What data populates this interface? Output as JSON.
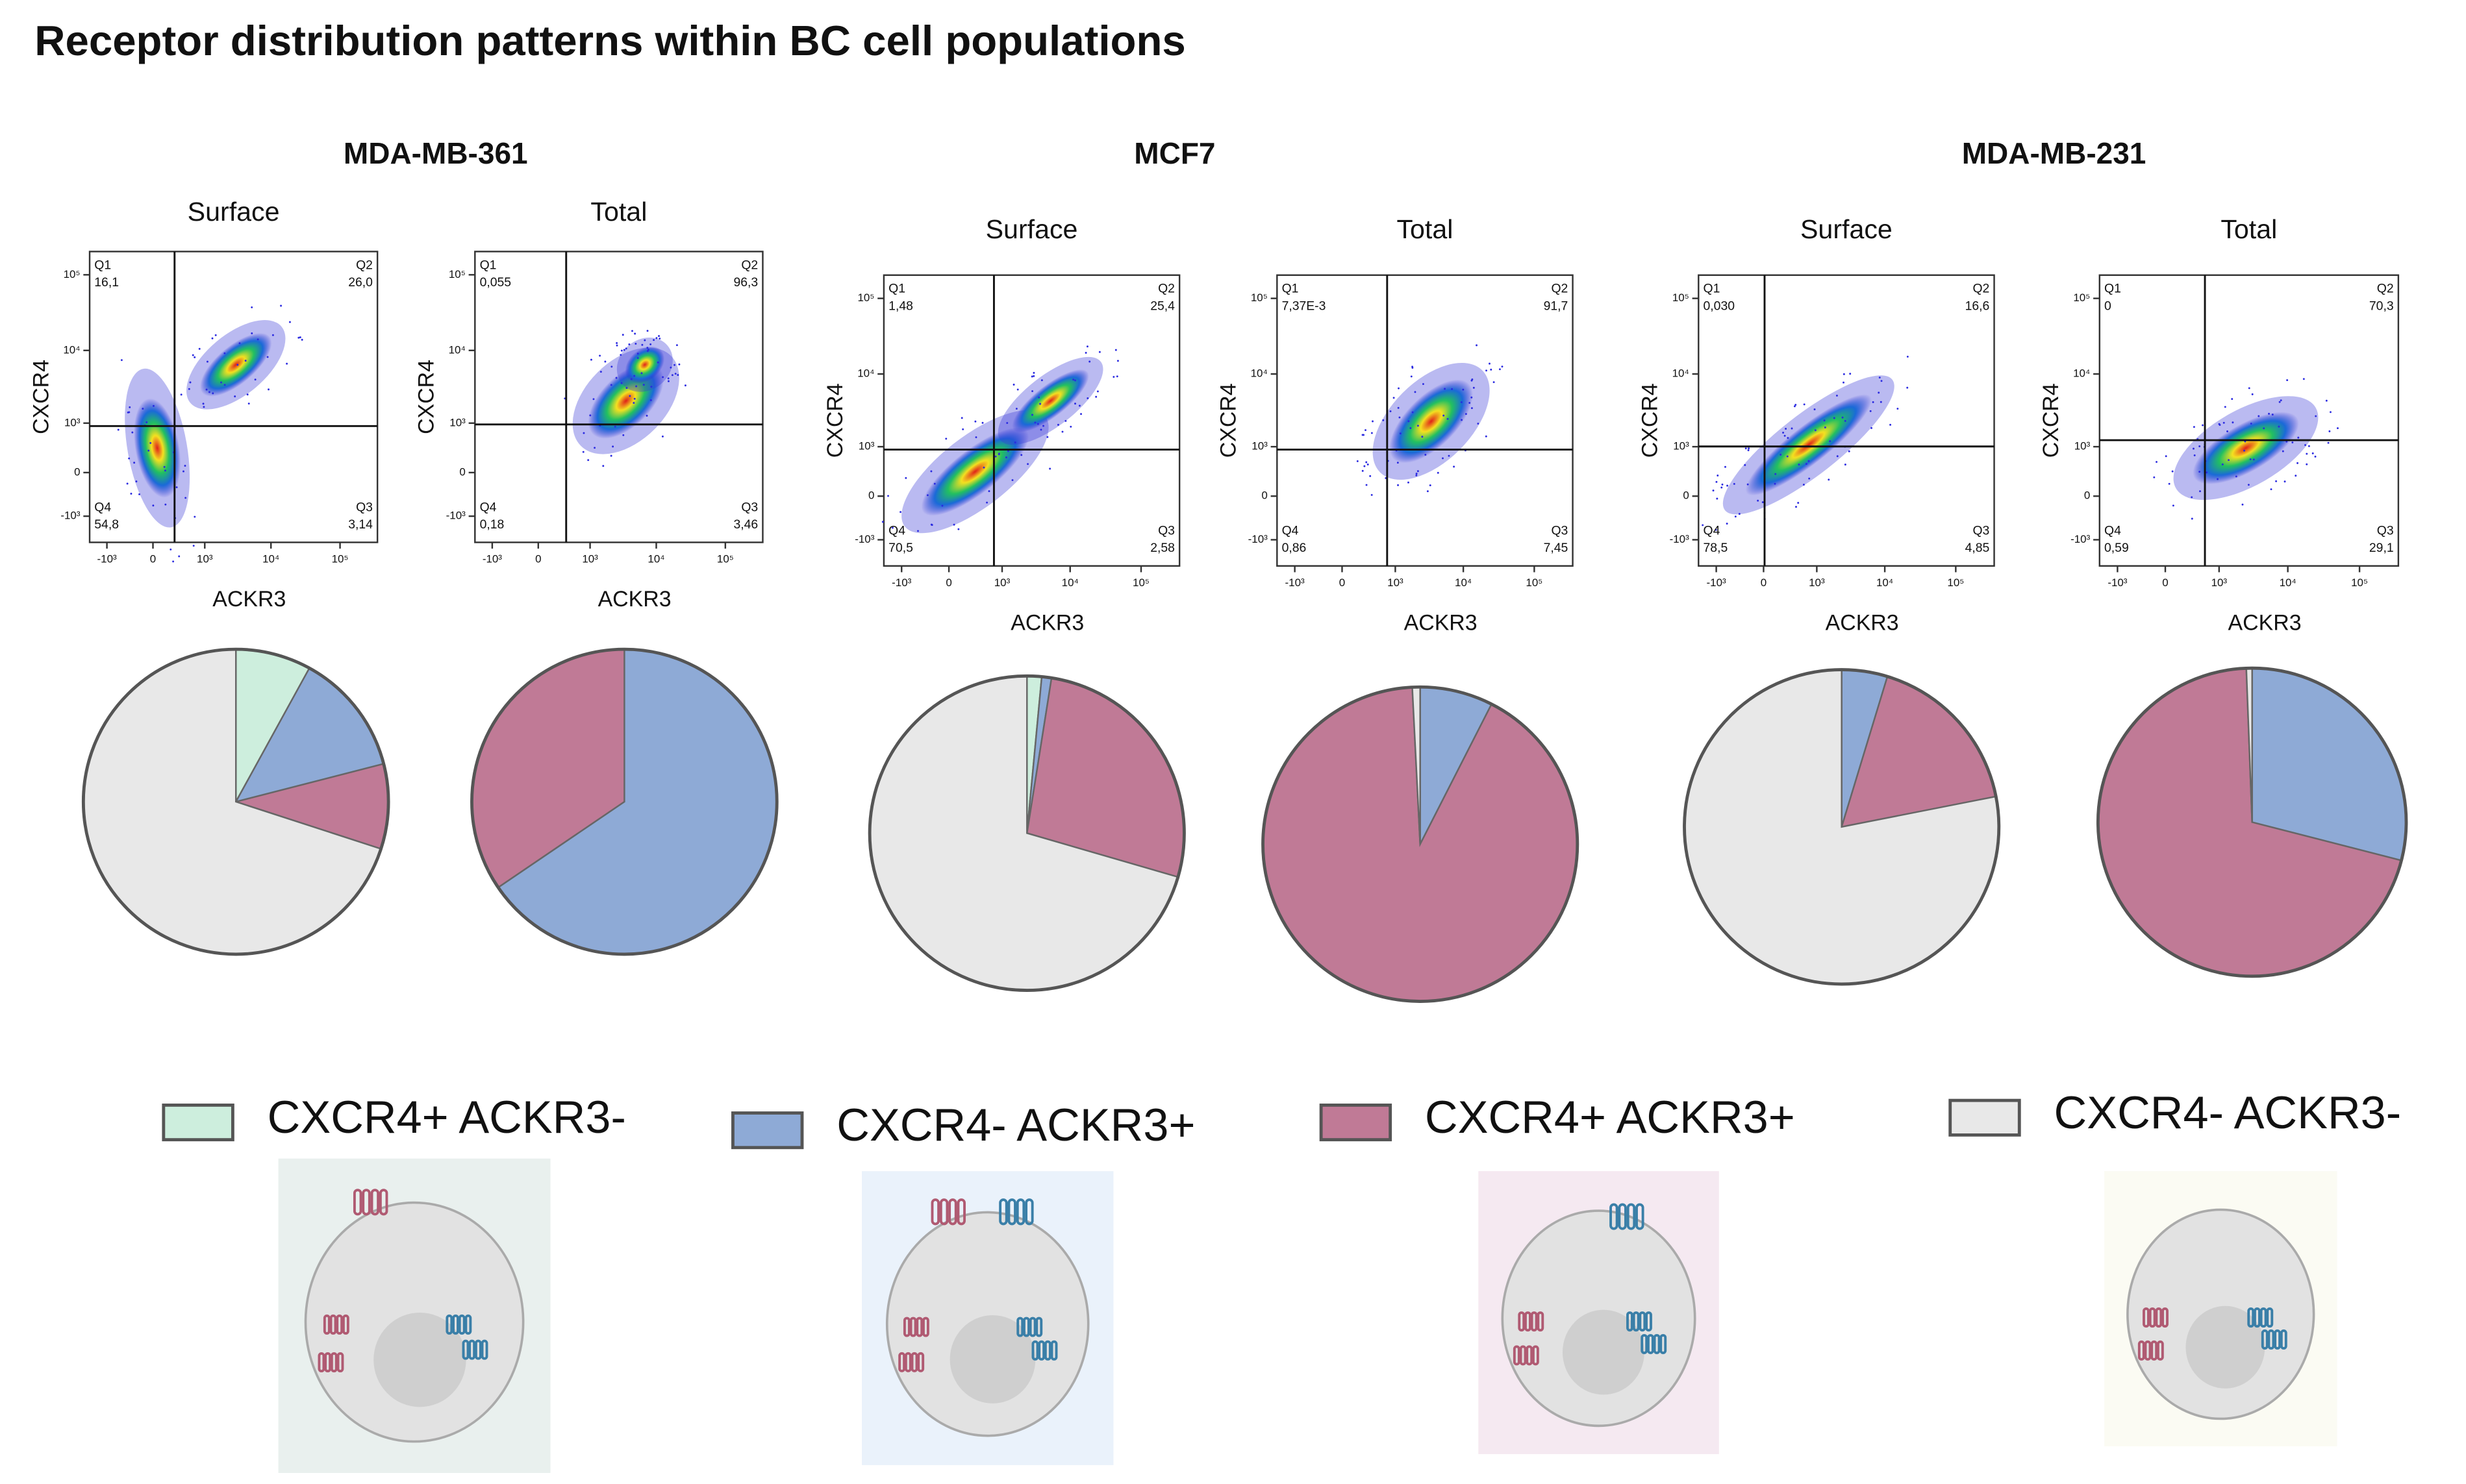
{
  "title": "Receptor distribution patterns within BC cell populations",
  "flow_axes": {
    "x_label": "ACKR3",
    "y_label": "CXCR4",
    "x_ticks": [
      "-10³",
      "0",
      "10³",
      "10⁴",
      "10⁵"
    ],
    "y_ticks": [
      "10⁵",
      "10⁴",
      "10³",
      "0",
      "-10³"
    ]
  },
  "cell_lines": [
    {
      "name": "MDA-MB-361",
      "panels": [
        {
          "label": "Surface",
          "quadrants": [
            {
              "name": "Q1",
              "value": "16,1"
            },
            {
              "name": "Q2",
              "value": "26,0"
            },
            {
              "name": "Q3",
              "value": "3,14"
            },
            {
              "name": "Q4",
              "value": "54,8"
            }
          ]
        },
        {
          "label": "Total",
          "quadrants": [
            {
              "name": "Q1",
              "value": "0,055"
            },
            {
              "name": "Q2",
              "value": "96,3"
            },
            {
              "name": "Q3",
              "value": "3,46"
            },
            {
              "name": "Q4",
              "value": "0,18"
            }
          ]
        }
      ]
    },
    {
      "name": "MCF7",
      "panels": [
        {
          "label": "Surface",
          "quadrants": [
            {
              "name": "Q1",
              "value": "1,48"
            },
            {
              "name": "Q2",
              "value": "25,4"
            },
            {
              "name": "Q3",
              "value": "2,58"
            },
            {
              "name": "Q4",
              "value": "70,5"
            }
          ]
        },
        {
          "label": "Total",
          "quadrants": [
            {
              "name": "Q1",
              "value": "7,37E-3"
            },
            {
              "name": "Q2",
              "value": "91,7"
            },
            {
              "name": "Q3",
              "value": "7,45"
            },
            {
              "name": "Q4",
              "value": "0,86"
            }
          ]
        }
      ]
    },
    {
      "name": "MDA-MB-231",
      "panels": [
        {
          "label": "Surface",
          "quadrants": [
            {
              "name": "Q1",
              "value": "0,030"
            },
            {
              "name": "Q2",
              "value": "16,6"
            },
            {
              "name": "Q3",
              "value": "4,85"
            },
            {
              "name": "Q4",
              "value": "78,5"
            }
          ]
        },
        {
          "label": "Total",
          "quadrants": [
            {
              "name": "Q1",
              "value": "0"
            },
            {
              "name": "Q2",
              "value": "70,3"
            },
            {
              "name": "Q3",
              "value": "29,1"
            },
            {
              "name": "Q4",
              "value": "0,59"
            }
          ]
        }
      ]
    }
  ],
  "legend": [
    {
      "label": "CXCR4+ ACKR3-",
      "color": "#cdeedd"
    },
    {
      "label": "CXCR4- ACKR3+",
      "color": "#8eaad6"
    },
    {
      "label": "CXCR4+ ACKR3+",
      "color": "#c07a96"
    },
    {
      "label": "CXCR4- ACKR3-",
      "color": "#e8e8e8"
    }
  ],
  "chart_data": [
    {
      "type": "pie",
      "values": [
        8,
        13,
        9,
        70
      ]
    },
    {
      "type": "pie",
      "values": [
        0,
        65.5,
        34.5,
        0
      ]
    },
    {
      "type": "pie",
      "values": [
        1.5,
        1,
        27,
        70.5
      ]
    },
    {
      "type": "pie",
      "values": [
        0,
        7.5,
        91.7,
        0.8
      ]
    },
    {
      "type": "pie",
      "values": [
        0,
        4.7,
        17.2,
        78.1
      ]
    },
    {
      "type": "pie",
      "values": [
        0,
        29,
        70.4,
        0.6
      ]
    }
  ]
}
